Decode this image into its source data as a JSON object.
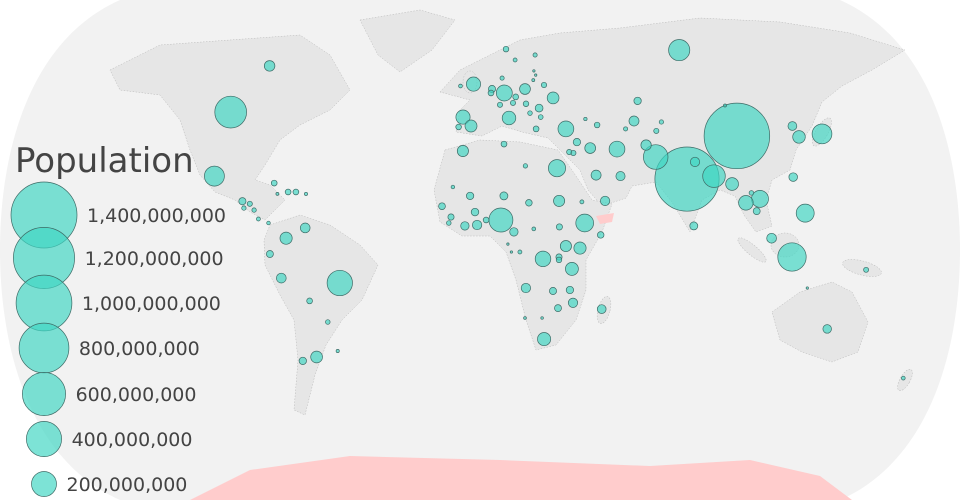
{
  "legend": {
    "title": "Population",
    "entries": [
      {
        "value": 1400000000,
        "label": "1,400,000,000"
      },
      {
        "value": 1200000000,
        "label": "1,200,000,000"
      },
      {
        "value": 1000000000,
        "label": "1,000,000,000"
      },
      {
        "value": 800000000,
        "label": "800,000,000"
      },
      {
        "value": 600000000,
        "label": "600,000,000"
      },
      {
        "value": 400000000,
        "label": "400,000,000"
      },
      {
        "value": 200000000,
        "label": "200,000,000"
      }
    ]
  },
  "colors": {
    "ocean": "#f2f2f2",
    "land": "#e6e6e6",
    "bubble": "#40d6c3",
    "highlight": "#ffcccc",
    "text": "#444444"
  },
  "map_data": {
    "size_scale": "sqrt",
    "bubbles": [
      {
        "pop": 144000000,
        "lon": 103,
        "lat": 61.8
      },
      {
        "pop": 36000000,
        "lon": -103,
        "lat": 57
      },
      {
        "pop": 323000000,
        "lon": -108,
        "lat": 43
      },
      {
        "pop": 128000000,
        "lon": -104,
        "lat": 23.6
      },
      {
        "pop": 11000000,
        "lon": -80,
        "lat": 21.5
      },
      {
        "pop": 3000000,
        "lon": -78,
        "lat": 18.2
      },
      {
        "pop": 11000000,
        "lon": -74,
        "lat": 18.8
      },
      {
        "pop": 10600000,
        "lon": -71,
        "lat": 18.8
      },
      {
        "pop": 3400000,
        "lon": -67,
        "lat": 18.2
      },
      {
        "pop": 16600000,
        "lon": -91,
        "lat": 16
      },
      {
        "pop": 9000000,
        "lon": -88,
        "lat": 15.2
      },
      {
        "pop": 6300000,
        "lon": -90,
        "lat": 13.9
      },
      {
        "pop": 6100000,
        "lon": -86,
        "lat": 13.3
      },
      {
        "pop": 4900000,
        "lon": -84,
        "lat": 10.6
      },
      {
        "pop": 4000000,
        "lon": -80,
        "lat": 9.4
      },
      {
        "pop": 31000000,
        "lon": -66,
        "lat": 7.9
      },
      {
        "pop": 48000000,
        "lon": -73,
        "lat": 4.8
      },
      {
        "pop": 16000000,
        "lon": -79,
        "lat": 0
      },
      {
        "pop": 31000000,
        "lon": -75,
        "lat": -7.3
      },
      {
        "pop": 207000000,
        "lon": -53,
        "lat": -8.8
      },
      {
        "pop": 11000000,
        "lon": -65,
        "lat": -14.2
      },
      {
        "pop": 6700000,
        "lon": -59,
        "lat": -20.6
      },
      {
        "pop": 18000000,
        "lon": -72,
        "lat": -32.4
      },
      {
        "pop": 44000000,
        "lon": -66,
        "lat": -31.2
      },
      {
        "pop": 3400000,
        "lon": -57,
        "lat": -29.4
      },
      {
        "pop": 5200000,
        "lon": 17.5,
        "lat": 58.8
      },
      {
        "pop": 10000000,
        "lon": 13.5,
        "lat": 62.1
      },
      {
        "pop": 5500000,
        "lon": 28,
        "lat": 60.3
      },
      {
        "pop": 65000000,
        "lon": -3,
        "lat": 51.5
      },
      {
        "pop": 4700000,
        "lon": -9,
        "lat": 50.9
      },
      {
        "pop": 82000000,
        "lon": 11,
        "lat": 48.8
      },
      {
        "pop": 17000000,
        "lon": 5.5,
        "lat": 50
      },
      {
        "pop": 11000000,
        "lon": 5,
        "lat": 48.8
      },
      {
        "pop": 38000000,
        "lon": 20.6,
        "lat": 50
      },
      {
        "pop": 9500000,
        "lon": 29.6,
        "lat": 51.2
      },
      {
        "pop": 45000000,
        "lon": 32.7,
        "lat": 47.3
      },
      {
        "pop": 10600000,
        "lon": 16,
        "lat": 47.6
      },
      {
        "pop": 8700000,
        "lon": 14.6,
        "lat": 45.8
      },
      {
        "pop": 9800000,
        "lon": 20.3,
        "lat": 45.5
      },
      {
        "pop": 8400000,
        "lon": 8.8,
        "lat": 45.2
      },
      {
        "pop": 19700000,
        "lon": 25.8,
        "lat": 44.2
      },
      {
        "pop": 7000000,
        "lon": 21.6,
        "lat": 42.7
      },
      {
        "pop": 7100000,
        "lon": 26,
        "lat": 41.5
      },
      {
        "pop": 10700000,
        "lon": 23.5,
        "lat": 37.9
      },
      {
        "pop": 60000000,
        "lon": 12.4,
        "lat": 41.2
      },
      {
        "pop": 64000000,
        "lon": -7.3,
        "lat": 41.5
      },
      {
        "pop": 46000000,
        "lon": -3.8,
        "lat": 38.8
      },
      {
        "pop": 10000000,
        "lon": -9,
        "lat": 38.5
      },
      {
        "pop": 5700000,
        "lon": 10.4,
        "lat": 53.3
      },
      {
        "pop": 1300000,
        "lon": 26,
        "lat": 55.5
      },
      {
        "pop": 2000000,
        "lon": 26.5,
        "lat": 54.2
      },
      {
        "pop": 2900000,
        "lon": 25,
        "lat": 52.7
      },
      {
        "pop": 80000000,
        "lon": 36,
        "lat": 37.9
      },
      {
        "pop": 40000000,
        "lon": -6.9,
        "lat": 31.2
      },
      {
        "pop": 11000000,
        "lon": 9.8,
        "lat": 33.3
      },
      {
        "pop": 6000000,
        "lon": 18,
        "lat": 26.7
      },
      {
        "pop": 95000000,
        "lon": 30.4,
        "lat": 26
      },
      {
        "pop": 18000000,
        "lon": 39.7,
        "lat": 33.9
      },
      {
        "pop": 8500000,
        "lon": 36,
        "lat": 30.9
      },
      {
        "pop": 9500000,
        "lon": 37.6,
        "lat": 30.6
      },
      {
        "pop": 37000000,
        "lon": 44.7,
        "lat": 32.1
      },
      {
        "pop": 80000000,
        "lon": 55.5,
        "lat": 31.8
      },
      {
        "pop": 32000000,
        "lon": 45.5,
        "lat": 23.9
      },
      {
        "pop": 27000000,
        "lon": 55,
        "lat": 23.6
      },
      {
        "pop": 9800000,
        "lon": 49.4,
        "lat": 39.1
      },
      {
        "pop": 3700000,
        "lon": 45,
        "lat": 40.9
      },
      {
        "pop": 18000000,
        "lon": 70,
        "lat": 46.4
      },
      {
        "pop": 32000000,
        "lon": 65.5,
        "lat": 40.3
      },
      {
        "pop": 5700000,
        "lon": 61,
        "lat": 37.9
      },
      {
        "pop": 8700000,
        "lon": 73.6,
        "lat": 37.3
      },
      {
        "pop": 6000000,
        "lon": 77,
        "lat": 40
      },
      {
        "pop": 3000000,
        "lon": 107.7,
        "lat": 45
      },
      {
        "pop": 35000000,
        "lon": 67.7,
        "lat": 33
      },
      {
        "pop": 193000000,
        "lon": 70.4,
        "lat": 29.4
      },
      {
        "pop": 1324000000,
        "lon": 80.8,
        "lat": 22.7
      },
      {
        "pop": 29000000,
        "lon": 85.6,
        "lat": 27.9
      },
      {
        "pop": 163000000,
        "lon": 91.6,
        "lat": 23.6
      },
      {
        "pop": 1379000000,
        "lon": 106.3,
        "lat": 35.8
      },
      {
        "pop": 53000000,
        "lon": 97.9,
        "lat": 21.2
      },
      {
        "pop": 69000000,
        "lon": 101.7,
        "lat": 15.5
      },
      {
        "pop": 93000000,
        "lon": 107.4,
        "lat": 16.7
      },
      {
        "pop": 16000000,
        "lon": 105.3,
        "lat": 13
      },
      {
        "pop": 7000000,
        "lon": 104.6,
        "lat": 18.5
      },
      {
        "pop": 103000000,
        "lon": 123.6,
        "lat": 12.4
      },
      {
        "pop": 31000000,
        "lon": 109.8,
        "lat": 4.8
      },
      {
        "pop": 261000000,
        "lon": 117.3,
        "lat": -0.9
      },
      {
        "pop": 127000000,
        "lon": 142,
        "lat": 36.4
      },
      {
        "pop": 51000000,
        "lon": 131.8,
        "lat": 35.5
      },
      {
        "pop": 25000000,
        "lon": 131.6,
        "lat": 38.8
      },
      {
        "pop": 23500000,
        "lon": 122.5,
        "lat": 23.3
      },
      {
        "pop": 21000000,
        "lon": 80.8,
        "lat": 8.5
      },
      {
        "pop": 8000000,
        "lon": 145.4,
        "lat": -4.8
      },
      {
        "pop": 2000000,
        "lon": 124,
        "lat": -10.3
      },
      {
        "pop": 24000000,
        "lon": 135.5,
        "lat": -22.7
      },
      {
        "pop": 4700000,
        "lon": 177,
        "lat": -37.6
      },
      {
        "pop": 4300000,
        "lon": -10.5,
        "lat": 20.3
      },
      {
        "pop": 18000000,
        "lon": -3.8,
        "lat": 17.6
      },
      {
        "pop": 21000000,
        "lon": 9.2,
        "lat": 17.6
      },
      {
        "pop": 14000000,
        "lon": 18.7,
        "lat": 15.5
      },
      {
        "pop": 40000000,
        "lon": 30.3,
        "lat": 16.1
      },
      {
        "pop": 5000000,
        "lon": 39,
        "lat": 15.8
      },
      {
        "pop": 28000000,
        "lon": 47.9,
        "lat": 16.1
      },
      {
        "pop": 15000000,
        "lon": -14.5,
        "lat": 14.5
      },
      {
        "pop": 18600000,
        "lon": -1.9,
        "lat": 12.7
      },
      {
        "pop": 12000000,
        "lon": -11,
        "lat": 11.2
      },
      {
        "pop": 7000000,
        "lon": -11.8,
        "lat": 9.4
      },
      {
        "pop": 23000000,
        "lon": -5.7,
        "lat": 8.5
      },
      {
        "pop": 28000000,
        "lon": -1.1,
        "lat": 8.8
      },
      {
        "pop": 11000000,
        "lon": 2.3,
        "lat": 10.3
      },
      {
        "pop": 186000000,
        "lon": 7.9,
        "lat": 10.3
      },
      {
        "pop": 23000000,
        "lon": 12.8,
        "lat": 6.7
      },
      {
        "pop": 4600000,
        "lon": 20.3,
        "lat": 7.6
      },
      {
        "pop": 12000000,
        "lon": 30,
        "lat": 8.2
      },
      {
        "pop": 102000000,
        "lon": 39.6,
        "lat": 9.4
      },
      {
        "pop": 14000000,
        "lon": 45.5,
        "lat": 5.8
      },
      {
        "pop": 41000000,
        "lon": 32.3,
        "lat": 2.4
      },
      {
        "pop": 48000000,
        "lon": 37.6,
        "lat": 1.8
      },
      {
        "pop": 79000000,
        "lon": 23.7,
        "lat": -1.5
      },
      {
        "pop": 12000000,
        "lon": 29.7,
        "lat": -0.9
      },
      {
        "pop": 10000000,
        "lon": 29.7,
        "lat": -1.8
      },
      {
        "pop": 5000000,
        "lon": 15,
        "lat": 0.6
      },
      {
        "pop": 1200000,
        "lon": 10.5,
        "lat": 3
      },
      {
        "pop": 2000000,
        "lon": 11.8,
        "lat": 0.6
      },
      {
        "pop": 55000000,
        "lon": 34.6,
        "lat": -4.5
      },
      {
        "pop": 29000000,
        "lon": 17.4,
        "lat": -10.3
      },
      {
        "pop": 16600000,
        "lon": 27.7,
        "lat": -11.2
      },
      {
        "pop": 18000000,
        "lon": 34.1,
        "lat": -10.9
      },
      {
        "pop": 29000000,
        "lon": 35.5,
        "lat": -14.8
      },
      {
        "pop": 16000000,
        "lon": 29.9,
        "lat": -16.4
      },
      {
        "pop": 25000000,
        "lon": 46.7,
        "lat": -16.7
      },
      {
        "pop": 2500000,
        "lon": 17.4,
        "lat": -19.4
      },
      {
        "pop": 2200000,
        "lon": 24,
        "lat": -19.4
      },
      {
        "pop": 56000000,
        "lon": 25.3,
        "lat": -25.8
      }
    ]
  }
}
